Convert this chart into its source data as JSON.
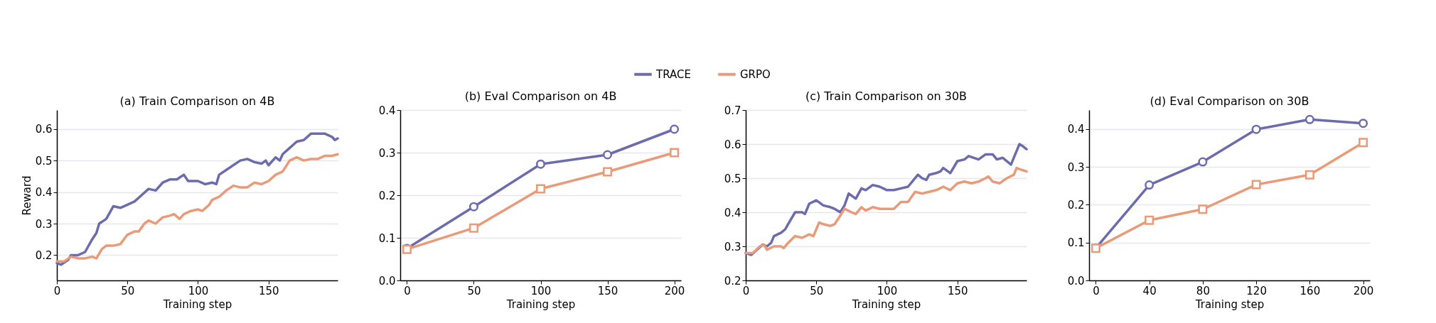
{
  "chart_data": [
    {
      "type": "line",
      "title": "(a) Train Comparison on 4B",
      "xlabel": "Training step",
      "ylabel": "Reward",
      "xlim": [
        0,
        199
      ],
      "xticks": [
        0,
        50,
        100,
        150
      ],
      "ylim": [
        0.12,
        0.66
      ],
      "yticks": [
        0.2,
        0.3,
        0.4,
        0.5,
        0.6
      ],
      "grid": "y",
      "legend": "top",
      "marker": "none",
      "series": [
        {
          "name": "TRACE",
          "color": "#6b6bad",
          "x": [
            0,
            3,
            8,
            10,
            15,
            20,
            25,
            28,
            30,
            35,
            40,
            45,
            50,
            55,
            60,
            65,
            70,
            75,
            80,
            85,
            90,
            93,
            100,
            105,
            110,
            113,
            115,
            120,
            125,
            130,
            135,
            140,
            145,
            148,
            150,
            155,
            158,
            160,
            165,
            170,
            175,
            180,
            185,
            190,
            195,
            197,
            199
          ],
          "values": [
            0.175,
            0.17,
            0.185,
            0.2,
            0.2,
            0.21,
            0.25,
            0.27,
            0.3,
            0.315,
            0.355,
            0.35,
            0.36,
            0.37,
            0.39,
            0.41,
            0.405,
            0.43,
            0.44,
            0.44,
            0.455,
            0.435,
            0.435,
            0.425,
            0.43,
            0.425,
            0.455,
            0.47,
            0.485,
            0.5,
            0.505,
            0.495,
            0.49,
            0.5,
            0.485,
            0.51,
            0.5,
            0.52,
            0.54,
            0.56,
            0.565,
            0.585,
            0.585,
            0.585,
            0.575,
            0.565,
            0.57
          ]
        },
        {
          "name": "GRPO",
          "color": "#e99a78",
          "x": [
            0,
            5,
            10,
            15,
            20,
            25,
            28,
            32,
            35,
            40,
            45,
            50,
            55,
            58,
            62,
            65,
            70,
            75,
            80,
            83,
            87,
            90,
            95,
            100,
            103,
            108,
            110,
            115,
            120,
            125,
            130,
            135,
            140,
            145,
            150,
            155,
            160,
            165,
            170,
            175,
            180,
            185,
            190,
            195,
            199
          ],
          "values": [
            0.18,
            0.18,
            0.195,
            0.19,
            0.19,
            0.195,
            0.19,
            0.22,
            0.23,
            0.23,
            0.235,
            0.265,
            0.275,
            0.275,
            0.3,
            0.31,
            0.3,
            0.32,
            0.325,
            0.33,
            0.315,
            0.33,
            0.34,
            0.345,
            0.34,
            0.36,
            0.375,
            0.385,
            0.405,
            0.42,
            0.415,
            0.415,
            0.43,
            0.425,
            0.435,
            0.455,
            0.465,
            0.5,
            0.51,
            0.5,
            0.505,
            0.505,
            0.515,
            0.515,
            0.52
          ]
        }
      ]
    },
    {
      "type": "line",
      "title": "(b) Eval Comparison on 4B",
      "xlabel": "Training step",
      "xlim": [
        -5,
        205
      ],
      "xticks": [
        0,
        50,
        100,
        150,
        200
      ],
      "ylim": [
        0,
        0.4
      ],
      "yticks": [
        {
          "value": 0,
          "label": "0.0"
        },
        0.1,
        0.2,
        0.3,
        0.4
      ],
      "grid": "y",
      "series": [
        {
          "name": "TRACE",
          "color": "#6b6bad",
          "marker": "circle",
          "x": [
            0,
            50,
            100,
            150,
            200
          ],
          "values": [
            0.075,
            0.173,
            0.273,
            0.295,
            0.355
          ]
        },
        {
          "name": "GRPO",
          "color": "#e99a78",
          "marker": "square",
          "x": [
            0,
            50,
            100,
            150,
            200
          ],
          "values": [
            0.073,
            0.123,
            0.215,
            0.255,
            0.3
          ]
        }
      ]
    },
    {
      "type": "line",
      "title": "(c) Train Comparison on 30B",
      "xlabel": "Training step",
      "xlim": [
        0,
        199
      ],
      "xticks": [
        0,
        50,
        100,
        150
      ],
      "ylim": [
        0.2,
        0.7
      ],
      "yticks": [
        0.2,
        0.3,
        0.4,
        0.5,
        0.6,
        0.7
      ],
      "grid": "y",
      "marker": "none",
      "series": [
        {
          "name": "TRACE",
          "color": "#6b6bad",
          "x": [
            0,
            4,
            8,
            12,
            15,
            18,
            20,
            25,
            28,
            30,
            35,
            40,
            42,
            45,
            50,
            55,
            60,
            63,
            67,
            70,
            73,
            78,
            82,
            85,
            90,
            95,
            100,
            105,
            110,
            115,
            118,
            122,
            125,
            128,
            130,
            135,
            138,
            140,
            145,
            150,
            155,
            158,
            165,
            170,
            175,
            178,
            182,
            188,
            190,
            194,
            196,
            199
          ],
          "values": [
            0.28,
            0.275,
            0.29,
            0.305,
            0.3,
            0.31,
            0.33,
            0.34,
            0.35,
            0.365,
            0.4,
            0.4,
            0.395,
            0.425,
            0.435,
            0.42,
            0.415,
            0.41,
            0.4,
            0.42,
            0.455,
            0.44,
            0.47,
            0.465,
            0.48,
            0.475,
            0.465,
            0.465,
            0.47,
            0.475,
            0.49,
            0.51,
            0.5,
            0.495,
            0.51,
            0.515,
            0.52,
            0.53,
            0.515,
            0.55,
            0.555,
            0.565,
            0.555,
            0.57,
            0.57,
            0.555,
            0.56,
            0.54,
            0.56,
            0.6,
            0.595,
            0.585
          ]
        },
        {
          "name": "GRPO",
          "color": "#e99a78",
          "x": [
            0,
            5,
            10,
            13,
            15,
            20,
            25,
            27,
            30,
            35,
            40,
            45,
            48,
            52,
            55,
            60,
            63,
            67,
            70,
            75,
            78,
            82,
            85,
            90,
            95,
            100,
            105,
            110,
            115,
            120,
            125,
            130,
            135,
            140,
            145,
            150,
            155,
            160,
            165,
            170,
            172,
            175,
            180,
            185,
            190,
            192,
            195,
            199
          ],
          "values": [
            0.28,
            0.28,
            0.3,
            0.305,
            0.29,
            0.3,
            0.3,
            0.295,
            0.31,
            0.33,
            0.325,
            0.335,
            0.33,
            0.37,
            0.365,
            0.36,
            0.365,
            0.39,
            0.41,
            0.4,
            0.395,
            0.415,
            0.405,
            0.415,
            0.41,
            0.41,
            0.41,
            0.43,
            0.43,
            0.46,
            0.455,
            0.46,
            0.465,
            0.475,
            0.465,
            0.485,
            0.49,
            0.485,
            0.49,
            0.5,
            0.505,
            0.49,
            0.485,
            0.5,
            0.51,
            0.53,
            0.525,
            0.52
          ]
        }
      ]
    },
    {
      "type": "line",
      "title": "(d) Eval Comparison on 30B",
      "xlabel": "Training step",
      "xlim": [
        -5,
        205
      ],
      "xticks": [
        0,
        40,
        80,
        120,
        160,
        200
      ],
      "ylim": [
        0,
        0.45
      ],
      "yticks": [
        {
          "value": 0,
          "label": "0.0"
        },
        0.1,
        0.2,
        0.3,
        0.4
      ],
      "grid": "y",
      "series": [
        {
          "name": "TRACE",
          "color": "#6b6bad",
          "marker": "circle",
          "x": [
            0,
            40,
            80,
            120,
            160,
            200
          ],
          "values": [
            0.085,
            0.252,
            0.313,
            0.399,
            0.425,
            0.415
          ]
        },
        {
          "name": "GRPO",
          "color": "#e99a78",
          "marker": "square",
          "x": [
            0,
            40,
            80,
            120,
            160,
            200
          ],
          "values": [
            0.085,
            0.159,
            0.188,
            0.253,
            0.279,
            0.364
          ]
        }
      ]
    }
  ]
}
